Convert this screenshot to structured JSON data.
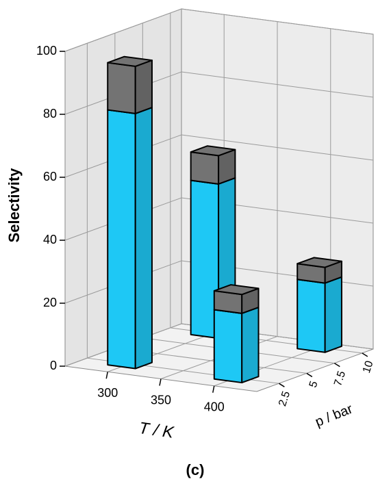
{
  "chart_data": {
    "type": "bar3d",
    "ylabel": "Selectivity",
    "xlabel": "T / K",
    "zlabel": "p / bar",
    "x": [
      300,
      300,
      400,
      400
    ],
    "z": [
      2.5,
      10,
      2.5,
      10
    ],
    "series": [
      {
        "color": "#1ec8f5",
        "values": [
          81,
          49,
          22,
          22
        ]
      },
      {
        "color": "#737373",
        "values": [
          15,
          9,
          6,
          5
        ]
      }
    ],
    "ylim": [
      0,
      100
    ],
    "yticks": [
      0,
      20,
      40,
      60,
      80,
      100
    ],
    "xlim": [
      260,
      440
    ],
    "xticks": [
      300,
      350,
      400
    ],
    "zlim": [
      0.5,
      11
    ],
    "zticks": [
      2.5,
      5,
      7.5,
      10
    ],
    "grid": true
  },
  "caption": "(c)"
}
